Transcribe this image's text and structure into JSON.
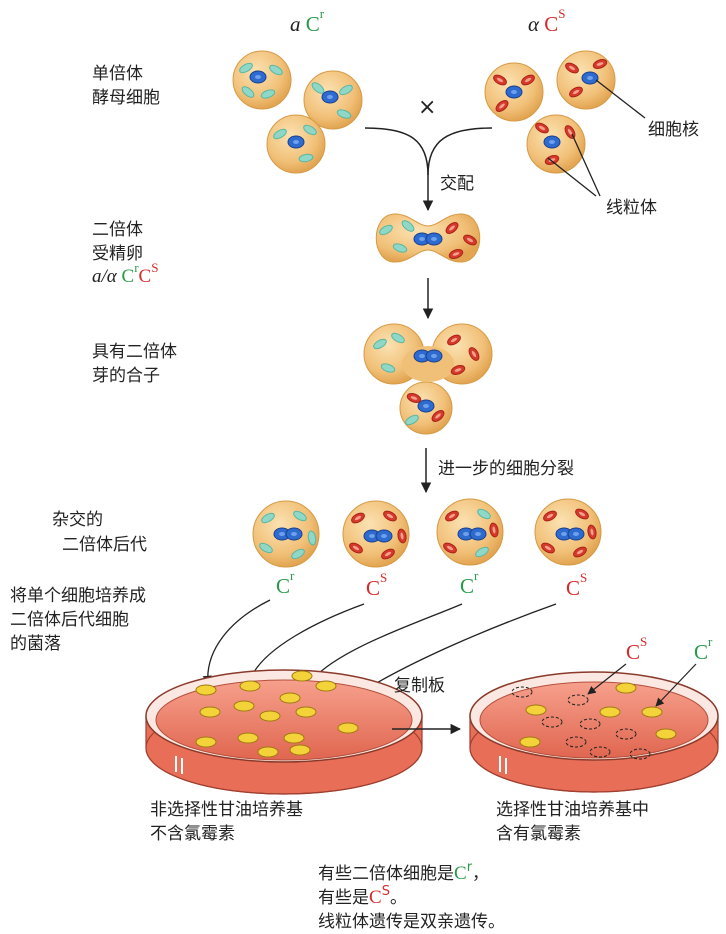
{
  "parents": {
    "left": {
      "mating": "a",
      "mito": "C",
      "allele": "r"
    },
    "right": {
      "mating": "α",
      "mito": "C",
      "allele": "S"
    }
  },
  "labels": {
    "haploid": [
      "单倍体",
      "酵母细胞"
    ],
    "cross": "×",
    "nucleus": "细胞核",
    "mating": "交配",
    "mitochondria": "线粒体",
    "diploid": [
      "二倍体",
      "受精卵"
    ],
    "diploid_geno": {
      "mating": "a/α",
      "c1": "C",
      "s1": "r",
      "c2": "C",
      "s2": "S"
    },
    "bud": [
      "具有二倍体",
      "芽的合子"
    ],
    "further": "进一步的细胞分裂",
    "progeny": [
      "杂交的",
      "二倍体后代"
    ],
    "colony": [
      "将单个细胞培养成",
      "二倍体后代细胞",
      "的菌落"
    ],
    "progeny_genotypes": [
      {
        "c": "C",
        "s": "r"
      },
      {
        "c": "C",
        "s": "S"
      },
      {
        "c": "C",
        "s": "r"
      },
      {
        "c": "C",
        "s": "S"
      }
    ],
    "replica": "复制板",
    "plate_cs": {
      "c": "C",
      "s": "S"
    },
    "plate_cr": {
      "c": "C",
      "s": "r"
    },
    "plate_left": [
      "非选择性甘油培养基",
      "不含氯霉素"
    ],
    "plate_right": [
      "选择性甘油培养基中",
      "含有氯霉素"
    ],
    "conclusion": {
      "l1_pre": "有些二倍体细胞是",
      "l1_c": "C",
      "l1_s": "r",
      "l1_post": "，",
      "l2_pre": "有些是",
      "l2_c": "C",
      "l2_s": "S",
      "l2_post": "。",
      "l3": "线粒体遗传是双亲遗传。"
    }
  },
  "colors": {
    "cell": "#f2c27a",
    "cell_edge": "#d69a45",
    "green_mito": "#8fd8c8",
    "red_mito": "#d63a2a",
    "nucleus": "#2d6bd0",
    "agar": "#ef8a74",
    "colony": "#f4d23a"
  }
}
